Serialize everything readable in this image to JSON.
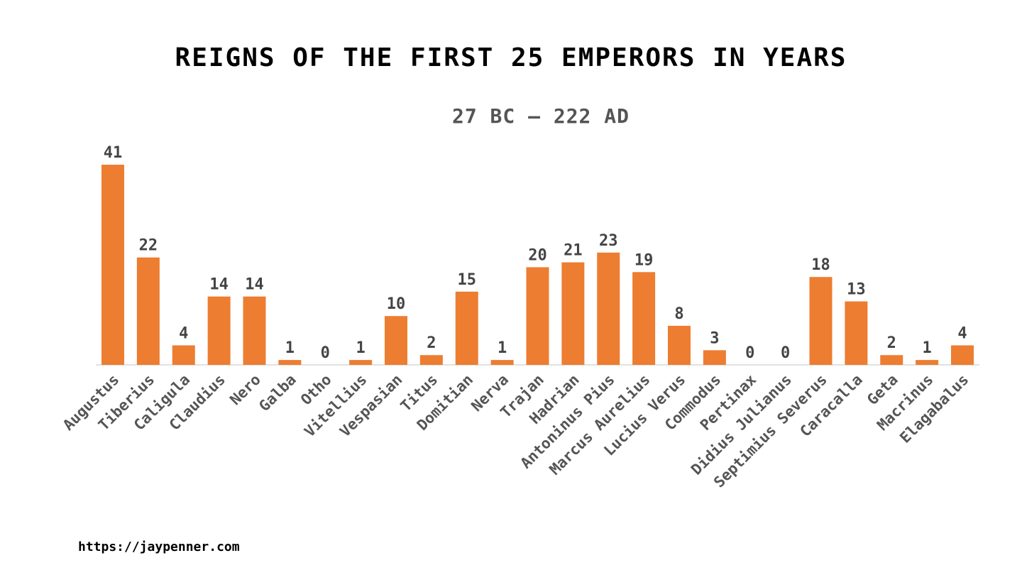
{
  "chart_data": {
    "type": "bar",
    "title": "REIGNS OF THE FIRST 25 EMPERORS IN YEARS",
    "subtitle": "27 BC – 222 AD",
    "categories": [
      "Augustus",
      "Tiberius",
      "Caligula",
      "Claudius",
      "Nero",
      "Galba",
      "Otho",
      "Vitellius",
      "Vespasian",
      "Titus",
      "Domitian",
      "Nerva",
      "Trajan",
      "Hadrian",
      "Antoninus Pius",
      "Marcus Aurelius",
      "Lucius Verus",
      "Commodus",
      "Pertinax",
      "Didius Julianus",
      "Septimius Severus",
      "Caracalla",
      "Geta",
      "Macrinus",
      "Elagabalus"
    ],
    "values": [
      41,
      22,
      4,
      14,
      14,
      1,
      0,
      1,
      10,
      2,
      15,
      1,
      20,
      21,
      23,
      19,
      8,
      3,
      0,
      0,
      18,
      13,
      2,
      1,
      4
    ],
    "color": "#ed7d31",
    "data_labels": true
  },
  "footer": "https://jaypenner.com"
}
